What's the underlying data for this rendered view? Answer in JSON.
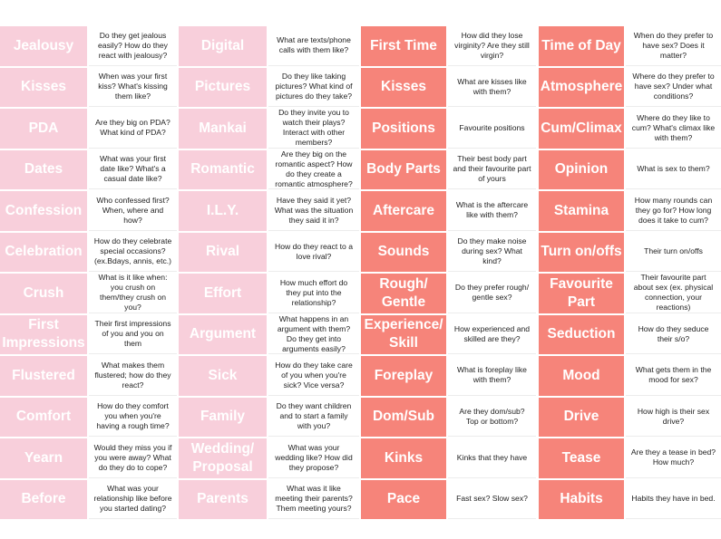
{
  "colors": {
    "pink_label": "#f8cfdb",
    "red_label": "#f6847a",
    "label_text": "#ffffff",
    "question_text": "#222222"
  },
  "columns": [
    {
      "theme": "pink",
      "rows": [
        {
          "label": "Jealousy",
          "question": "Do they get jealous easily? How do they react with jealousy?"
        },
        {
          "label": "Kisses",
          "question": "When was your first kiss? What's kissing them like?"
        },
        {
          "label": "PDA",
          "question": "Are they big on PDA? What kind of PDA?"
        },
        {
          "label": "Dates",
          "question": "What was your first date like? What's a casual date like?"
        },
        {
          "label": "Confession",
          "question": "Who confessed first? When, where and how?"
        },
        {
          "label": "Celebration",
          "question": "How do they celebrate special occasions? (ex.Bdays, annis, etc.)"
        },
        {
          "label": "Crush",
          "question": "What is it like when: you crush on them/they crush on you?"
        },
        {
          "label": "First Impressions",
          "question": "Their first impressions of you and you on them"
        },
        {
          "label": "Flustered",
          "question": "What makes them flustered; how do they react?"
        },
        {
          "label": "Comfort",
          "question": "How do they comfort you when you're having a rough time?"
        },
        {
          "label": "Yearn",
          "question": "Would they miss you if you were away? What do they do to cope?"
        },
        {
          "label": "Before",
          "question": "What was your relationship like before you started dating?"
        }
      ]
    },
    {
      "theme": "pink",
      "rows": [
        {
          "label": "Digital",
          "question": "What are texts/phone calls with them like?"
        },
        {
          "label": "Pictures",
          "question": "Do they like taking pictures? What kind of pictures do they take?"
        },
        {
          "label": "Mankai",
          "question": "Do they invite you to watch their plays? Interact with other members?"
        },
        {
          "label": "Romantic",
          "question": "Are they big on the romantic aspect? How do they create a romantic atmosphere?"
        },
        {
          "label": "I.L.Y.",
          "question": "Have they said it yet? What was the situation they said it in?"
        },
        {
          "label": "Rival",
          "question": "How do they react to a love rival?"
        },
        {
          "label": "Effort",
          "question": "How much effort do they put into the relationship?"
        },
        {
          "label": "Argument",
          "question": "What happens in an argument with them? Do they get into arguments easily?"
        },
        {
          "label": "Sick",
          "question": "How do they take care of you when you're sick? Vice versa?"
        },
        {
          "label": "Family",
          "question": "Do they want children and to start a family with you?"
        },
        {
          "label": "Wedding/ Proposal",
          "question": "What was your wedding like? How did they propose?"
        },
        {
          "label": "Parents",
          "question": "What was it like meeting their parents? Them meeting yours?"
        }
      ]
    },
    {
      "theme": "red",
      "rows": [
        {
          "label": "First Time",
          "question": "How did they lose virginity? Are they still virgin?"
        },
        {
          "label": "Kisses",
          "question": "What are kisses like with them?"
        },
        {
          "label": "Positions",
          "question": "Favourite positions"
        },
        {
          "label": "Body Parts",
          "question": "Their best body part and their favourite part of yours"
        },
        {
          "label": "Aftercare",
          "question": "What is the aftercare like with them?"
        },
        {
          "label": "Sounds",
          "question": "Do they make noise during sex? What kind?"
        },
        {
          "label": "Rough/ Gentle",
          "question": "Do they prefer rough/ gentle sex?"
        },
        {
          "label": "Experience/ Skill",
          "question": "How experienced and skilled are they?"
        },
        {
          "label": "Foreplay",
          "question": "What is foreplay like with them?"
        },
        {
          "label": "Dom/Sub",
          "question": "Are they dom/sub? Top or bottom?"
        },
        {
          "label": "Kinks",
          "question": "Kinks that they have"
        },
        {
          "label": "Pace",
          "question": "Fast sex? Slow sex?"
        }
      ]
    },
    {
      "theme": "red",
      "rows": [
        {
          "label": "Time of Day",
          "question": "When do they prefer to have sex? Does it matter?"
        },
        {
          "label": "Atmosphere",
          "question": "Where do they prefer to have sex? Under what conditions?"
        },
        {
          "label": "Cum/Climax",
          "question": "Where do they like to cum? What's climax like with them?"
        },
        {
          "label": "Opinion",
          "question": "What is sex to them?"
        },
        {
          "label": "Stamina",
          "question": "How many rounds can they go for? How long does it take to cum?"
        },
        {
          "label": "Turn on/offs",
          "question": "Their turn on/offs"
        },
        {
          "label": "Favourite Part",
          "question": "Their favourite part about sex (ex. physical connection, your reactions)"
        },
        {
          "label": "Seduction",
          "question": "How do they seduce their s/o?"
        },
        {
          "label": "Mood",
          "question": "What gets them in the mood for sex?"
        },
        {
          "label": "Drive",
          "question": "How high is their sex drive?"
        },
        {
          "label": "Tease",
          "question": "Are they a tease in bed? How much?"
        },
        {
          "label": "Habits",
          "question": "Habits they have in bed."
        }
      ]
    }
  ]
}
